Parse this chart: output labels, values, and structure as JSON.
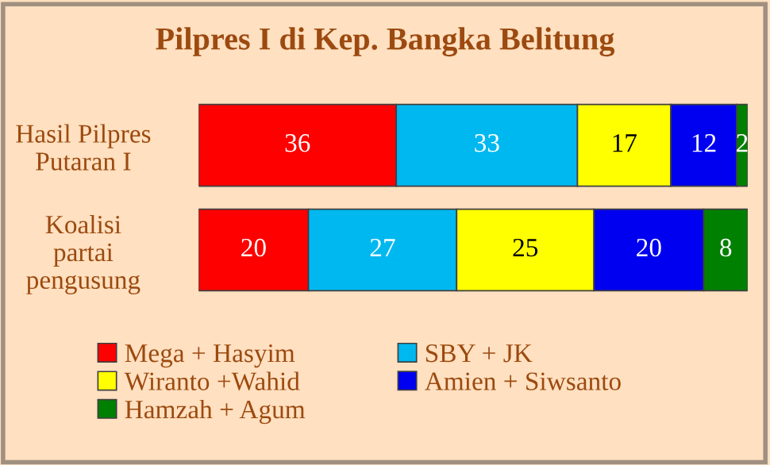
{
  "chart_data": {
    "type": "bar",
    "orientation": "horizontal",
    "stacked": true,
    "title": "Pilpres I di Kep. Bangka Belitung",
    "categories": [
      "Hasil Pilpres\nPutaran I",
      "Koalisi\npartai\npengusung"
    ],
    "series": [
      {
        "name": "Mega + Hasyim",
        "color": "#ff0000",
        "values": [
          36,
          20
        ]
      },
      {
        "name": "SBY + JK",
        "color": "#00b8f0",
        "values": [
          33,
          27
        ]
      },
      {
        "name": "Wiranto +Wahid",
        "color": "#ffff00",
        "values": [
          17,
          25
        ]
      },
      {
        "name": "Amien + Siwsanto",
        "color": "#0000f0",
        "values": [
          12,
          20
        ]
      },
      {
        "name": "Hamzah + Agum",
        "color": "#008000",
        "values": [
          2,
          8
        ]
      }
    ],
    "data_labels": true,
    "legend": "bottom",
    "grid": false,
    "tick_labels": "y"
  }
}
